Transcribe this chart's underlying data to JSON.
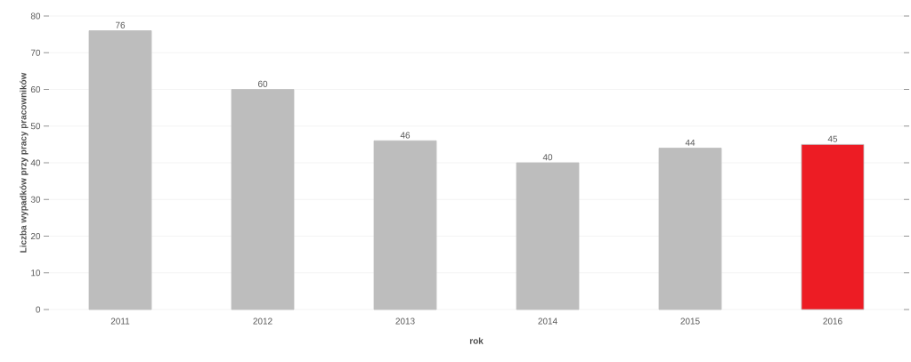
{
  "chart_data": {
    "type": "bar",
    "xlabel": "rok",
    "ylabel": "Liczba wypadków przy pracy pracowników",
    "categories": [
      "2011",
      "2012",
      "2013",
      "2014",
      "2015",
      "2016"
    ],
    "values": [
      76,
      60,
      46,
      40,
      44,
      45
    ],
    "colors": [
      "#bdbdbd",
      "#bdbdbd",
      "#bdbdbd",
      "#bdbdbd",
      "#bdbdbd",
      "#ed1c24"
    ],
    "ylim": [
      0,
      80
    ],
    "yticks": [
      0,
      10,
      20,
      30,
      40,
      50,
      60,
      70,
      80
    ],
    "grid": "y",
    "data_labels": true
  }
}
